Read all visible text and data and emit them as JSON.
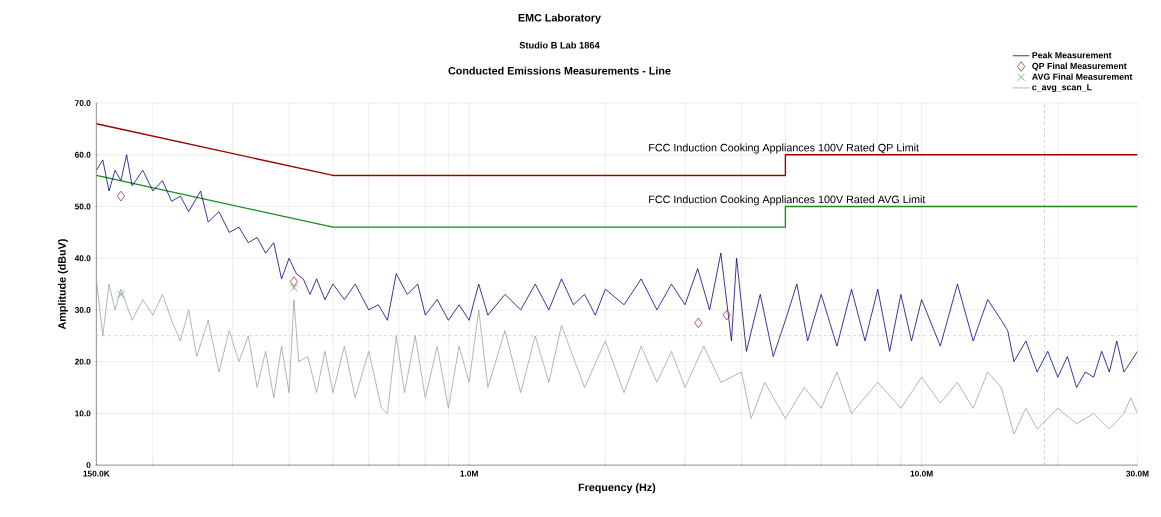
{
  "chart_data": {
    "type": "line",
    "title": "EMC Laboratory",
    "subtitle": "Studio B Lab 1864",
    "annotations": [
      "Conducted Emissions Measurements - Line",
      "FCC Induction Cooking Appliances 100V Rated QP Limit",
      "FCC Induction Cooking Appliances 100V Rated AVG Limit"
    ],
    "xlabel": "Frequency (Hz)",
    "ylabel": "Amplitude (dBuV)",
    "log": "x",
    "grid": true,
    "legend": "top right",
    "xlim": [
      150000,
      30000000
    ],
    "ylim": [
      0,
      70
    ],
    "xticks": [
      {
        "value": 150000,
        "label": "150.0K"
      },
      {
        "value": 200000,
        "label": null
      },
      {
        "value": 300000,
        "label": null
      },
      {
        "value": 400000,
        "label": null
      },
      {
        "value": 500000,
        "label": null
      },
      {
        "value": 600000,
        "label": null
      },
      {
        "value": 700000,
        "label": null
      },
      {
        "value": 800000,
        "label": null
      },
      {
        "value": 900000,
        "label": null
      },
      {
        "value": 1000000,
        "label": "1.0M"
      },
      {
        "value": 2000000,
        "label": null
      },
      {
        "value": 3000000,
        "label": null
      },
      {
        "value": 4000000,
        "label": null
      },
      {
        "value": 5000000,
        "label": null
      },
      {
        "value": 6000000,
        "label": null
      },
      {
        "value": 7000000,
        "label": null
      },
      {
        "value": 8000000,
        "label": null
      },
      {
        "value": 9000000,
        "label": null
      },
      {
        "value": 10000000,
        "label": "10.0M"
      },
      {
        "value": 20000000,
        "label": null
      },
      {
        "value": 30000000,
        "label": "30.0M"
      }
    ],
    "yticks": [
      0,
      {
        "value": 10,
        "label": "10.0"
      },
      {
        "value": 20,
        "label": "20.0"
      },
      {
        "value": 30,
        "label": "30.0"
      },
      {
        "value": 40,
        "label": "40.0"
      },
      {
        "value": 50,
        "label": "50.0"
      },
      {
        "value": 60,
        "label": "60.0"
      },
      {
        "value": 70,
        "label": "70.0"
      }
    ],
    "ref_lines": [
      {
        "axis": "y",
        "value": 25,
        "color": "#9fc5e8",
        "line_style": "dashed"
      },
      {
        "axis": "x",
        "value": 18700000,
        "color": "#9fc5e8",
        "line_style": "dashed"
      }
    ],
    "series": [
      {
        "color": "#990000",
        "x": [
          150000,
          500000,
          5000000,
          5000000,
          30000000
        ],
        "values": [
          66,
          56,
          56,
          60,
          60
        ]
      },
      {
        "color": "#1a8c1a",
        "x": [
          150000,
          500000,
          5000000,
          5000000,
          30000000
        ],
        "values": [
          56,
          46,
          46,
          50,
          50
        ]
      },
      {
        "name": "Peak Measurement",
        "color": "#000080",
        "x": [
          150000,
          155000,
          160000,
          165000,
          170000,
          175000,
          180000,
          190000,
          200000,
          210000,
          220000,
          230000,
          240000,
          255000,
          265000,
          280000,
          295000,
          310000,
          325000,
          340000,
          355000,
          370000,
          385000,
          400000,
          415000,
          430000,
          445000,
          460000,
          480000,
          500000,
          530000,
          560000,
          600000,
          630000,
          660000,
          690000,
          730000,
          770000,
          800000,
          850000,
          900000,
          950000,
          1000000,
          1050000,
          1100000,
          1200000,
          1300000,
          1400000,
          1500000,
          1600000,
          1700000,
          1800000,
          1900000,
          2000000,
          2200000,
          2400000,
          2600000,
          2800000,
          3000000,
          3200000,
          3400000,
          3600000,
          3800000,
          3900000,
          4100000,
          4400000,
          4700000,
          5000000,
          5300000,
          5600000,
          6000000,
          6500000,
          7000000,
          7500000,
          8000000,
          8500000,
          9000000,
          9500000,
          10000000,
          11000000,
          12000000,
          13000000,
          14000000,
          15000000,
          15500000,
          16000000,
          17000000,
          18000000,
          19000000,
          20000000,
          21000000,
          22000000,
          23000000,
          24000000,
          25000000,
          26000000,
          27000000,
          28000000,
          29000000,
          30000000
        ],
        "values": [
          57,
          59,
          53,
          57,
          55,
          60,
          54,
          57,
          53,
          55,
          51,
          52,
          49,
          53,
          47,
          49,
          45,
          46,
          43,
          44,
          41,
          43,
          36,
          40,
          37,
          36,
          33,
          36,
          32,
          35,
          32,
          35,
          30,
          31,
          28,
          37,
          33,
          35,
          29,
          32,
          28,
          31,
          28,
          35,
          29,
          33,
          30,
          35,
          30,
          36,
          31,
          33,
          29,
          34,
          31,
          36,
          30,
          35,
          31,
          38,
          30,
          41,
          24,
          40,
          22,
          33,
          21,
          28,
          35,
          24,
          33,
          23,
          34,
          24,
          34,
          22,
          33,
          24,
          32,
          23,
          35,
          24,
          32,
          28,
          26,
          20,
          24,
          18,
          22,
          17,
          21,
          15,
          18,
          17,
          22,
          18,
          24,
          18,
          20,
          22
        ]
      },
      {
        "type": "scatter",
        "name": "QP Final Measurement",
        "color": "#a03030",
        "marker": "diamond",
        "x": [
          170000,
          410000,
          3210000,
          3710000
        ],
        "values": [
          52,
          35.5,
          27.5,
          29
        ]
      },
      {
        "type": "scatter",
        "name": "AVG Final Measurement",
        "color": "#3cb043",
        "marker": "cross",
        "x": [
          170000,
          410000
        ],
        "values": [
          33,
          34.3
        ]
      },
      {
        "name": "c_avg_scan_L",
        "color": "#a0a0a0",
        "x": [
          150000,
          155000,
          160000,
          165000,
          170000,
          180000,
          190000,
          200000,
          210000,
          220000,
          230000,
          240000,
          250000,
          265000,
          280000,
          295000,
          310000,
          325000,
          340000,
          355000,
          370000,
          385000,
          400000,
          410000,
          420000,
          440000,
          460000,
          480000,
          500000,
          530000,
          560000,
          600000,
          640000,
          660000,
          690000,
          720000,
          760000,
          800000,
          850000,
          900000,
          950000,
          1000000,
          1050000,
          1100000,
          1200000,
          1300000,
          1400000,
          1500000,
          1600000,
          1800000,
          2000000,
          2200000,
          2400000,
          2600000,
          2800000,
          3000000,
          3300000,
          3600000,
          4000000,
          4200000,
          4500000,
          5000000,
          5500000,
          6000000,
          6500000,
          7000000,
          8000000,
          9000000,
          10000000,
          11000000,
          12000000,
          13000000,
          14000000,
          15000000,
          16000000,
          17000000,
          18000000,
          20000000,
          22000000,
          24000000,
          26000000,
          28000000,
          29000000,
          30000000
        ],
        "values": [
          36,
          25,
          35,
          30,
          34,
          28,
          32,
          29,
          33,
          28,
          24,
          30,
          21,
          28,
          18,
          26,
          20,
          25,
          15,
          22,
          13,
          23,
          14,
          32,
          20,
          21,
          14,
          22,
          14,
          23,
          13,
          22,
          11,
          10,
          25,
          14,
          25,
          13,
          23,
          11,
          23,
          16,
          30,
          15,
          26,
          14,
          25,
          16,
          27,
          15,
          24,
          14,
          23,
          16,
          22,
          15,
          23,
          16,
          18,
          9,
          16,
          9,
          15,
          11,
          18,
          10,
          16,
          11,
          17,
          12,
          16,
          11,
          18,
          15,
          6,
          11,
          7,
          11,
          8,
          10,
          7,
          10,
          13,
          10
        ]
      }
    ]
  }
}
